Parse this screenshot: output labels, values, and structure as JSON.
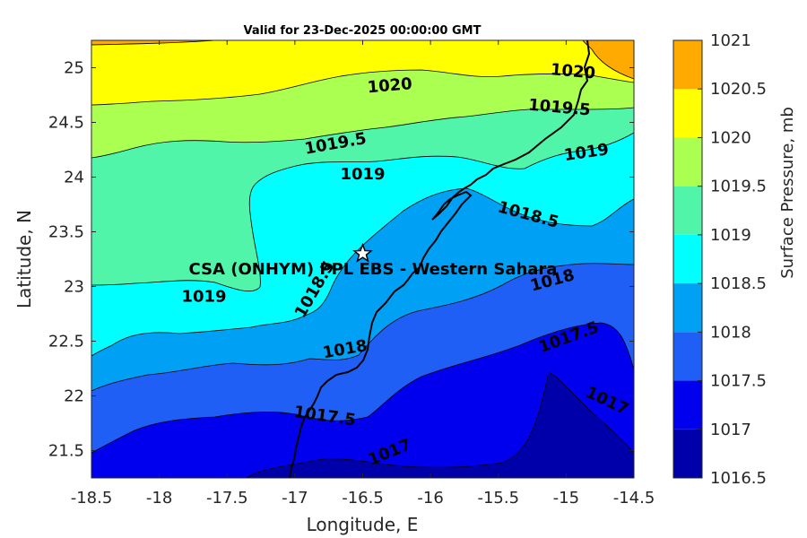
{
  "chart_data": {
    "type": "contourf",
    "title": "Valid for 23-Dec-2025 00:00:00 GMT",
    "xlabel": "Longitude, E",
    "ylabel": "Latitude, N",
    "xlim": [
      -18.5,
      -14.5
    ],
    "ylim": [
      21.25,
      25.25
    ],
    "xticks": [
      -18.5,
      -18,
      -17.5,
      -17,
      -16.5,
      -16,
      -15.5,
      -15,
      -14.5
    ],
    "xtick_labels": [
      "-18.5",
      "-18",
      "-17.5",
      "-17",
      "-16.5",
      "-16",
      "-15.5",
      "-15",
      "-14.5"
    ],
    "yticks": [
      21.5,
      22,
      22.5,
      23,
      23.5,
      24,
      24.5,
      25
    ],
    "ytick_labels": [
      "21.5",
      "22",
      "22.5",
      "23",
      "23.5",
      "24",
      "24.5",
      "25"
    ],
    "colorbar": {
      "label": "Surface Pressure, mb",
      "levels": [
        1016.5,
        1017,
        1017.5,
        1018,
        1018.5,
        1019,
        1019.5,
        1020,
        1020.5,
        1021
      ],
      "level_labels": [
        "1016.5",
        "1017",
        "1017.5",
        "1018",
        "1018.5",
        "1019",
        "1019.5",
        "1020",
        "1020.5",
        "1021"
      ],
      "colors": [
        "#0000aa",
        "#0000ee",
        "#1f5ff5",
        "#00a0f5",
        "#00ffff",
        "#50f5aa",
        "#aaff50",
        "#ffff00",
        "#ffaa00",
        "#ff5500"
      ]
    },
    "contour_labels": [
      {
        "text": "1020",
        "lon": -16.3,
        "lat": 24.83,
        "angle": -5
      },
      {
        "text": "1020",
        "lon": -14.95,
        "lat": 24.96,
        "angle": 5
      },
      {
        "text": "1019.5",
        "lon": -16.7,
        "lat": 24.3,
        "angle": -10
      },
      {
        "text": "1019.5",
        "lon": -15.05,
        "lat": 24.63,
        "angle": 5
      },
      {
        "text": "1019",
        "lon": -16.5,
        "lat": 24.02,
        "angle": 0
      },
      {
        "text": "1019",
        "lon": -14.85,
        "lat": 24.22,
        "angle": -8
      },
      {
        "text": "1019",
        "lon": -17.67,
        "lat": 22.9,
        "angle": 0
      },
      {
        "text": "1018.5",
        "lon": -15.28,
        "lat": 23.65,
        "angle": 15
      },
      {
        "text": "1018.5",
        "lon": -16.85,
        "lat": 22.97,
        "angle": -60
      },
      {
        "text": "1018",
        "lon": -16.63,
        "lat": 22.42,
        "angle": -10
      },
      {
        "text": "1018",
        "lon": -15.1,
        "lat": 23.05,
        "angle": -15
      },
      {
        "text": "1017.5",
        "lon": -16.78,
        "lat": 21.81,
        "angle": 8
      },
      {
        "text": "1017.5",
        "lon": -14.98,
        "lat": 22.53,
        "angle": -20
      },
      {
        "text": "1017",
        "lon": -16.3,
        "lat": 21.48,
        "angle": -22
      },
      {
        "text": "1017",
        "lon": -14.7,
        "lat": 21.95,
        "angle": 25
      }
    ],
    "site": {
      "name": "CSA (ONHYM) PPL EBS - Western Sahara",
      "lon": -16.5,
      "lat": 23.3
    }
  }
}
